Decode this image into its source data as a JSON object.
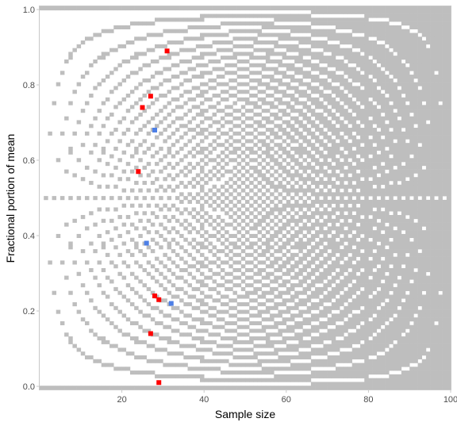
{
  "chart_data": {
    "type": "heatmap",
    "title": "",
    "xlabel": "Sample size",
    "ylabel": "Fractional portion of mean",
    "xlim": [
      0,
      100
    ],
    "ylim": [
      0,
      1
    ],
    "x_ticks": [
      20,
      40,
      60,
      80,
      100
    ],
    "y_ticks": [
      0.0,
      0.2,
      0.4,
      0.6,
      0.8,
      1.0
    ],
    "x_tick_labels": [
      "20",
      "40",
      "60",
      "80",
      "100"
    ],
    "y_tick_labels": [
      "0.0",
      "0.2",
      "0.4",
      "0.6",
      "0.8",
      "1.0"
    ],
    "grid": false,
    "legend": "none",
    "tile_grid": {
      "description": "grey tile where some mean of n integers has the given fractional portion",
      "n_range": [
        1,
        100
      ],
      "fraction_bins": 101,
      "color": "#bebebe"
    },
    "series": [
      {
        "color": "#ff0000",
        "points": [
          {
            "x": 31,
            "y": 0.89
          },
          {
            "x": 27,
            "y": 0.77
          },
          {
            "x": 25,
            "y": 0.74
          },
          {
            "x": 24,
            "y": 0.57
          },
          {
            "x": 28,
            "y": 0.24
          },
          {
            "x": 29,
            "y": 0.23
          },
          {
            "x": 27,
            "y": 0.14
          },
          {
            "x": 29,
            "y": 0.01
          }
        ]
      },
      {
        "color": "#4d7fe6",
        "points": [
          {
            "x": 28,
            "y": 0.68
          },
          {
            "x": 26,
            "y": 0.38
          },
          {
            "x": 32,
            "y": 0.22
          }
        ]
      }
    ]
  },
  "colors": {
    "tile": "#bebebe",
    "red": "#ff0000",
    "blue": "#4d7fe6",
    "frame": "#c8c8c8"
  }
}
